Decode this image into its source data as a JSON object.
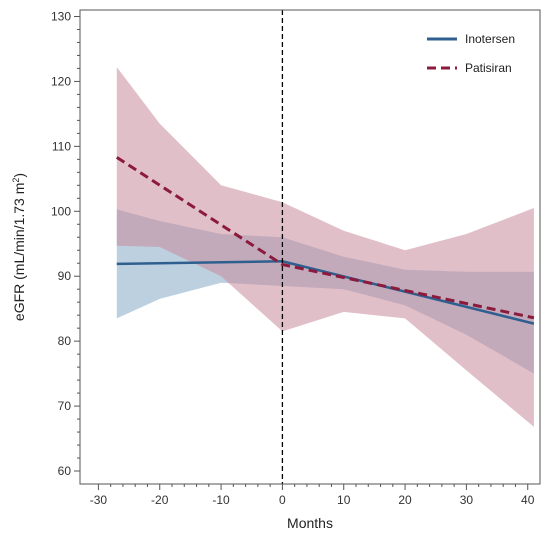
{
  "chart_data": {
    "type": "line",
    "xlabel": "Months",
    "ylabel": "eGFR (mL/min/1.73 m²)",
    "ylabel_parts": {
      "main": "eGFR (mL/min/1.73 m",
      "sup": "2",
      "tail": ")"
    },
    "xlim": [
      -33,
      42
    ],
    "ylim": [
      58,
      131
    ],
    "xticks": [
      -30,
      -20,
      -10,
      0,
      10,
      20,
      30,
      40
    ],
    "yticks": [
      60,
      70,
      80,
      90,
      100,
      110,
      120,
      130
    ],
    "grid": false,
    "legend_position": "top-right",
    "reference_line": {
      "x": 0,
      "style": "dashed",
      "color": "#000000"
    },
    "series": [
      {
        "name": "Inotersen",
        "color": "#2f5f8f",
        "band_color": "#8fb0cc",
        "line_style": "solid",
        "x": [
          -27,
          0,
          41
        ],
        "y": [
          91.9,
          92.3,
          82.7
        ],
        "band_x": [
          -27,
          -20,
          -10,
          0,
          10,
          20,
          30,
          41
        ],
        "band_lower": [
          83.5,
          86.5,
          89.0,
          88.5,
          88.0,
          85.5,
          81.0,
          75.0
        ],
        "band_upper": [
          100.3,
          98.5,
          96.5,
          96.0,
          93.0,
          91.0,
          90.7,
          90.7
        ]
      },
      {
        "name": "Patisiran",
        "color": "#8b1a3c",
        "band_color": "#c98a9c",
        "line_style": "dashed",
        "x": [
          -27,
          0,
          41
        ],
        "y": [
          108.3,
          91.8,
          83.6
        ],
        "band_x": [
          -27,
          -20,
          -10,
          0,
          10,
          20,
          30,
          41
        ],
        "band_lower": [
          94.7,
          94.5,
          90.0,
          81.5,
          84.5,
          83.5,
          75.5,
          66.8
        ],
        "band_upper": [
          122.2,
          113.5,
          104.0,
          101.4,
          97.0,
          94.0,
          96.5,
          100.5
        ]
      }
    ]
  }
}
